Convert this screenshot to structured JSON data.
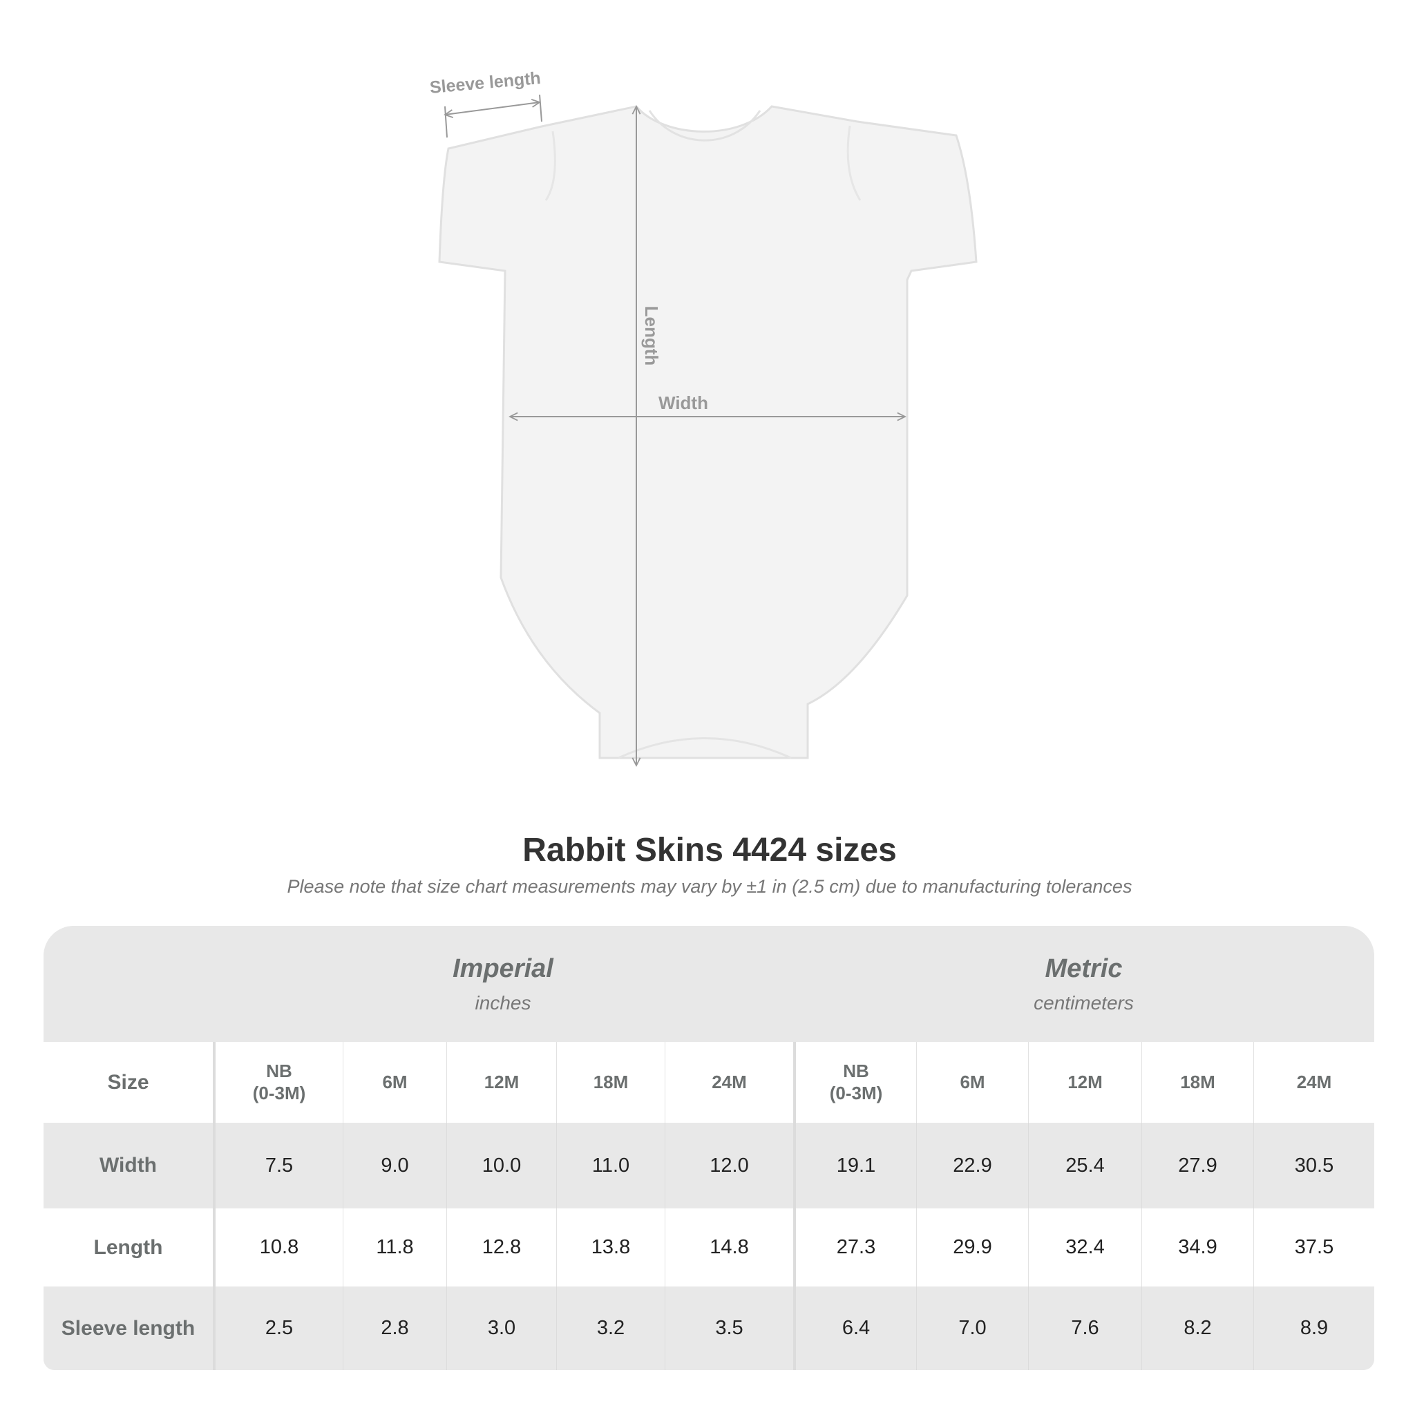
{
  "diagram": {
    "sleeve_label": "Sleeve length",
    "length_label": "Length",
    "width_label": "Width"
  },
  "chart_data": {
    "type": "table",
    "title": "Rabbit Skins 4424 sizes",
    "subtitle": "Please note that size chart measurements may vary by ±1 in (2.5 cm) due to manufacturing tolerances",
    "groups": [
      {
        "name": "Imperial",
        "unit": "inches"
      },
      {
        "name": "Metric",
        "unit": "centimeters"
      }
    ],
    "size_label": "Size",
    "sizes": [
      "NB\n(0-3M)",
      "6M",
      "12M",
      "18M",
      "24M"
    ],
    "rows": [
      {
        "label": "Width",
        "imperial": [
          "7.5",
          "9.0",
          "10.0",
          "11.0",
          "12.0"
        ],
        "metric": [
          "19.1",
          "22.9",
          "25.4",
          "27.9",
          "30.5"
        ]
      },
      {
        "label": "Length",
        "imperial": [
          "10.8",
          "11.8",
          "12.8",
          "13.8",
          "14.8"
        ],
        "metric": [
          "27.3",
          "29.9",
          "32.4",
          "34.9",
          "37.5"
        ]
      },
      {
        "label": "Sleeve length",
        "imperial": [
          "2.5",
          "2.8",
          "3.0",
          "3.2",
          "3.5"
        ],
        "metric": [
          "6.4",
          "7.0",
          "7.6",
          "8.2",
          "8.9"
        ]
      }
    ]
  },
  "colors": {
    "band": "#e8e8e8",
    "label": "#6b6f6f",
    "value": "#222222",
    "measure_line": "#999999"
  }
}
